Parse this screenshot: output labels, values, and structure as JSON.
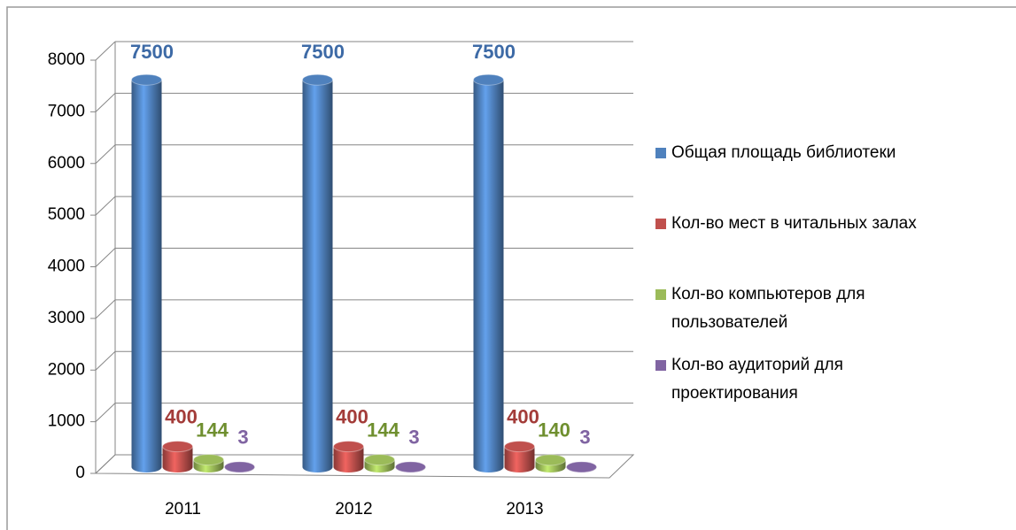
{
  "chart_data": {
    "type": "bar3d",
    "categories": [
      "2011",
      "2012",
      "2013"
    ],
    "series": [
      {
        "name": "Общая площадь библиотеки",
        "color": "#4f81bd",
        "label_color": "#3d6aa6",
        "values": [
          7500,
          7500,
          7500
        ]
      },
      {
        "name": "Кол-во мест в читальных залах",
        "color": "#c0504d",
        "label_color": "#a33c39",
        "values": [
          400,
          400,
          400
        ]
      },
      {
        "name": "Кол-во компьютеров для пользователей",
        "color": "#9bbb59",
        "label_color": "#6f8f2f",
        "values": [
          144,
          144,
          140
        ]
      },
      {
        "name": "Кол-во аудиторий для проектирования",
        "color": "#8064a2",
        "label_color": "#8064a2",
        "values": [
          3,
          3,
          3
        ]
      }
    ],
    "ylim": [
      0,
      8000
    ],
    "yticks": [
      0,
      1000,
      2000,
      3000,
      4000,
      5000,
      6000,
      7000,
      8000
    ],
    "grid": true,
    "legend": "right"
  }
}
